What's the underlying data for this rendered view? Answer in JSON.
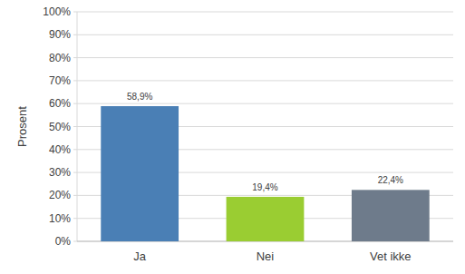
{
  "chart_data": {
    "type": "bar",
    "ylabel": "Prosent",
    "categories": [
      "Ja",
      "Nei",
      "Vet ikke"
    ],
    "values": [
      58.9,
      19.4,
      22.4
    ],
    "value_labels": [
      "58,9%",
      "19,4%",
      "22,4%"
    ],
    "colors": [
      "#4a7fb5",
      "#9acd32",
      "#6e7b8b"
    ],
    "ylim": [
      0,
      100
    ],
    "yticks": [
      {
        "value": 0,
        "label": "0%"
      },
      {
        "value": 10,
        "label": "10%"
      },
      {
        "value": 20,
        "label": "20%"
      },
      {
        "value": 30,
        "label": "30%"
      },
      {
        "value": 40,
        "label": "40%"
      },
      {
        "value": 50,
        "label": "50%"
      },
      {
        "value": 60,
        "label": "60%"
      },
      {
        "value": 70,
        "label": "70%"
      },
      {
        "value": 80,
        "label": "80%"
      },
      {
        "value": 90,
        "label": "90%"
      },
      {
        "value": 100,
        "label": "100%"
      }
    ],
    "grid": true,
    "data_labels": true
  }
}
